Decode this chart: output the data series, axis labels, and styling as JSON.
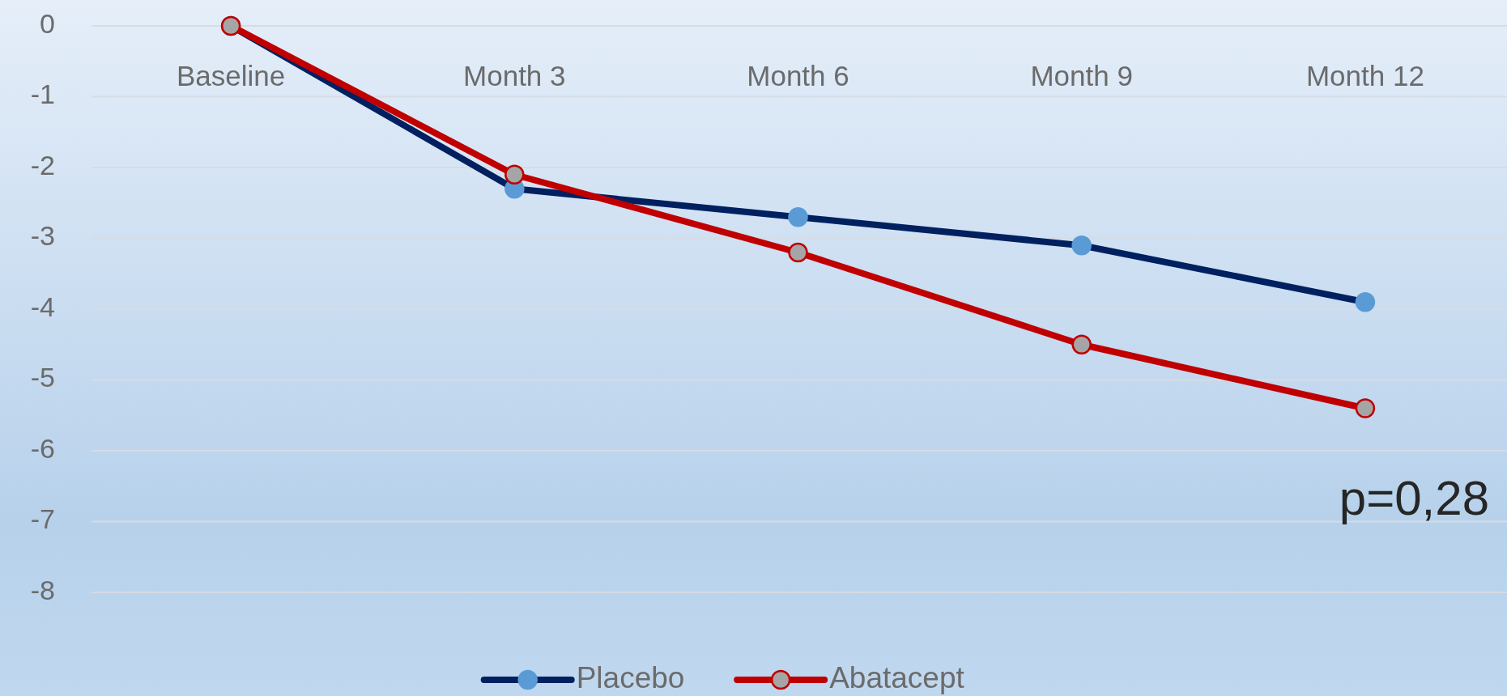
{
  "chart_data": {
    "type": "line",
    "categories": [
      "Baseline",
      "Month 3",
      "Month 6",
      "Month 9",
      "Month 12"
    ],
    "series": [
      {
        "name": "Placebo",
        "color": "#002060",
        "values": [
          0,
          -2.3,
          -2.7,
          -3.1,
          -3.9
        ]
      },
      {
        "name": "Abatacept",
        "color": "#c00000",
        "values": [
          0,
          -2.1,
          -3.2,
          -4.5,
          -5.4
        ]
      }
    ],
    "ylim": [
      -8,
      0
    ],
    "yticks": [
      0,
      -1,
      -2,
      -3,
      -4,
      -5,
      -6,
      -7,
      -8
    ],
    "grid": "y",
    "legend": "bottom",
    "marker": "circle",
    "line_style": "solid",
    "annotations": [
      "p=0,28"
    ]
  }
}
